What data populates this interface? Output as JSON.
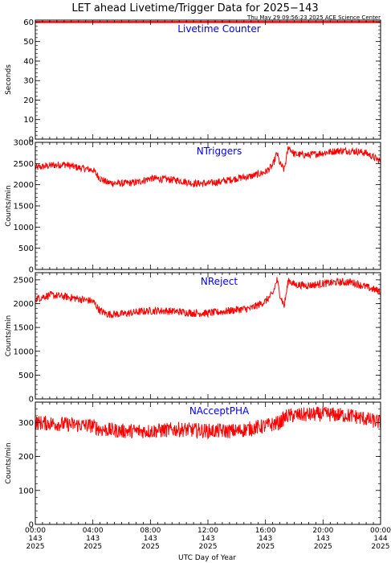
{
  "title": "LET ahead Livetime/Trigger Data for 2025−143",
  "timestamp": "Thu May 29 09:56:23 2025 ACE Science Center",
  "xlabel": "UTC Day of Year",
  "x_ticks": [
    {
      "time": "00:00",
      "doy": "143",
      "year": "2025"
    },
    {
      "time": "04:00",
      "doy": "143",
      "year": "2025"
    },
    {
      "time": "08:00",
      "doy": "143",
      "year": "2025"
    },
    {
      "time": "12:00",
      "doy": "143",
      "year": "2025"
    },
    {
      "time": "16:00",
      "doy": "143",
      "year": "2025"
    },
    {
      "time": "20:00",
      "doy": "143",
      "year": "2025"
    },
    {
      "time": "00:00",
      "doy": "144",
      "year": "2025"
    }
  ],
  "colors": {
    "series": "#ff0000",
    "label": "#0000ff",
    "axis": "#000000"
  },
  "chart_data": [
    {
      "type": "line",
      "series_label": "Livetime Counter",
      "ylabel": "Seconds",
      "xlim": [
        0,
        24
      ],
      "ylim": [
        0,
        61
      ],
      "yticks": [
        0,
        10,
        20,
        30,
        40,
        50,
        60
      ],
      "x": [
        0,
        24
      ],
      "values": [
        60,
        60
      ],
      "noise": 0
    },
    {
      "type": "line",
      "series_label": "NTriggers",
      "ylabel": "Counts/min",
      "xlim": [
        0,
        24
      ],
      "ylim": [
        0,
        3000
      ],
      "yticks": [
        0,
        500,
        1000,
        1500,
        2000,
        2500,
        3000
      ],
      "x": [
        0,
        1,
        2,
        3,
        4,
        4.5,
        5,
        6,
        7,
        8,
        9,
        10,
        11,
        12,
        13,
        14,
        15,
        16,
        16.5,
        16.8,
        17,
        17.3,
        17.6,
        18,
        19,
        20,
        21,
        22,
        23,
        24
      ],
      "values": [
        2400,
        2450,
        2480,
        2400,
        2350,
        2150,
        2050,
        2030,
        2050,
        2150,
        2130,
        2100,
        2030,
        2030,
        2080,
        2150,
        2200,
        2300,
        2450,
        2750,
        2500,
        2350,
        2900,
        2720,
        2700,
        2750,
        2800,
        2800,
        2750,
        2550
      ],
      "noise": 85
    },
    {
      "type": "line",
      "series_label": "NReject",
      "ylabel": "Counts/min",
      "xlim": [
        0,
        24
      ],
      "ylim": [
        0,
        2650
      ],
      "yticks": [
        0,
        500,
        1000,
        1500,
        2000,
        2500
      ],
      "x": [
        0,
        1,
        2,
        3,
        4,
        4.5,
        5,
        6,
        7,
        8,
        9,
        10,
        11,
        12,
        13,
        14,
        15,
        16,
        16.5,
        16.8,
        17,
        17.3,
        17.6,
        18,
        19,
        20,
        21,
        22,
        23,
        24
      ],
      "values": [
        2100,
        2180,
        2150,
        2100,
        2050,
        1850,
        1780,
        1780,
        1820,
        1850,
        1850,
        1830,
        1800,
        1800,
        1830,
        1870,
        1900,
        2050,
        2200,
        2500,
        2200,
        1950,
        2500,
        2400,
        2380,
        2420,
        2450,
        2450,
        2350,
        2250
      ],
      "noise": 80
    },
    {
      "type": "line",
      "series_label": "NAcceptPHA",
      "ylabel": "Counts/min",
      "xlim": [
        0,
        24
      ],
      "ylim": [
        0,
        360
      ],
      "yticks": [
        0,
        100,
        200,
        300
      ],
      "x": [
        0,
        2,
        4,
        4.5,
        6,
        8,
        10,
        12,
        14,
        16,
        17,
        17.5,
        20,
        22,
        24
      ],
      "values": [
        300,
        295,
        290,
        280,
        275,
        275,
        280,
        275,
        275,
        290,
        300,
        320,
        325,
        320,
        300
      ],
      "noise": 22
    }
  ]
}
